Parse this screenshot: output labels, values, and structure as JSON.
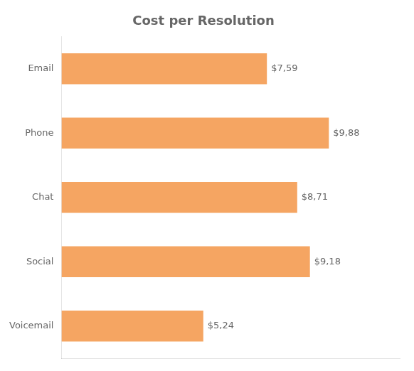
{
  "chart_data": {
    "type": "bar",
    "orientation": "horizontal",
    "title": "Cost per Resolution",
    "categories": [
      "Email",
      "Phone",
      "Chat",
      "Social",
      "Voicemail"
    ],
    "values": [
      7.59,
      9.88,
      8.71,
      9.18,
      5.24
    ],
    "value_labels": [
      "$7,59",
      "$9,88",
      "$8,71",
      "$9,18",
      "$5,24"
    ],
    "color": "#f5a562",
    "xlim": [
      0,
      12.5
    ],
    "grid": false,
    "data_labels": true,
    "tick_labels": "y"
  }
}
